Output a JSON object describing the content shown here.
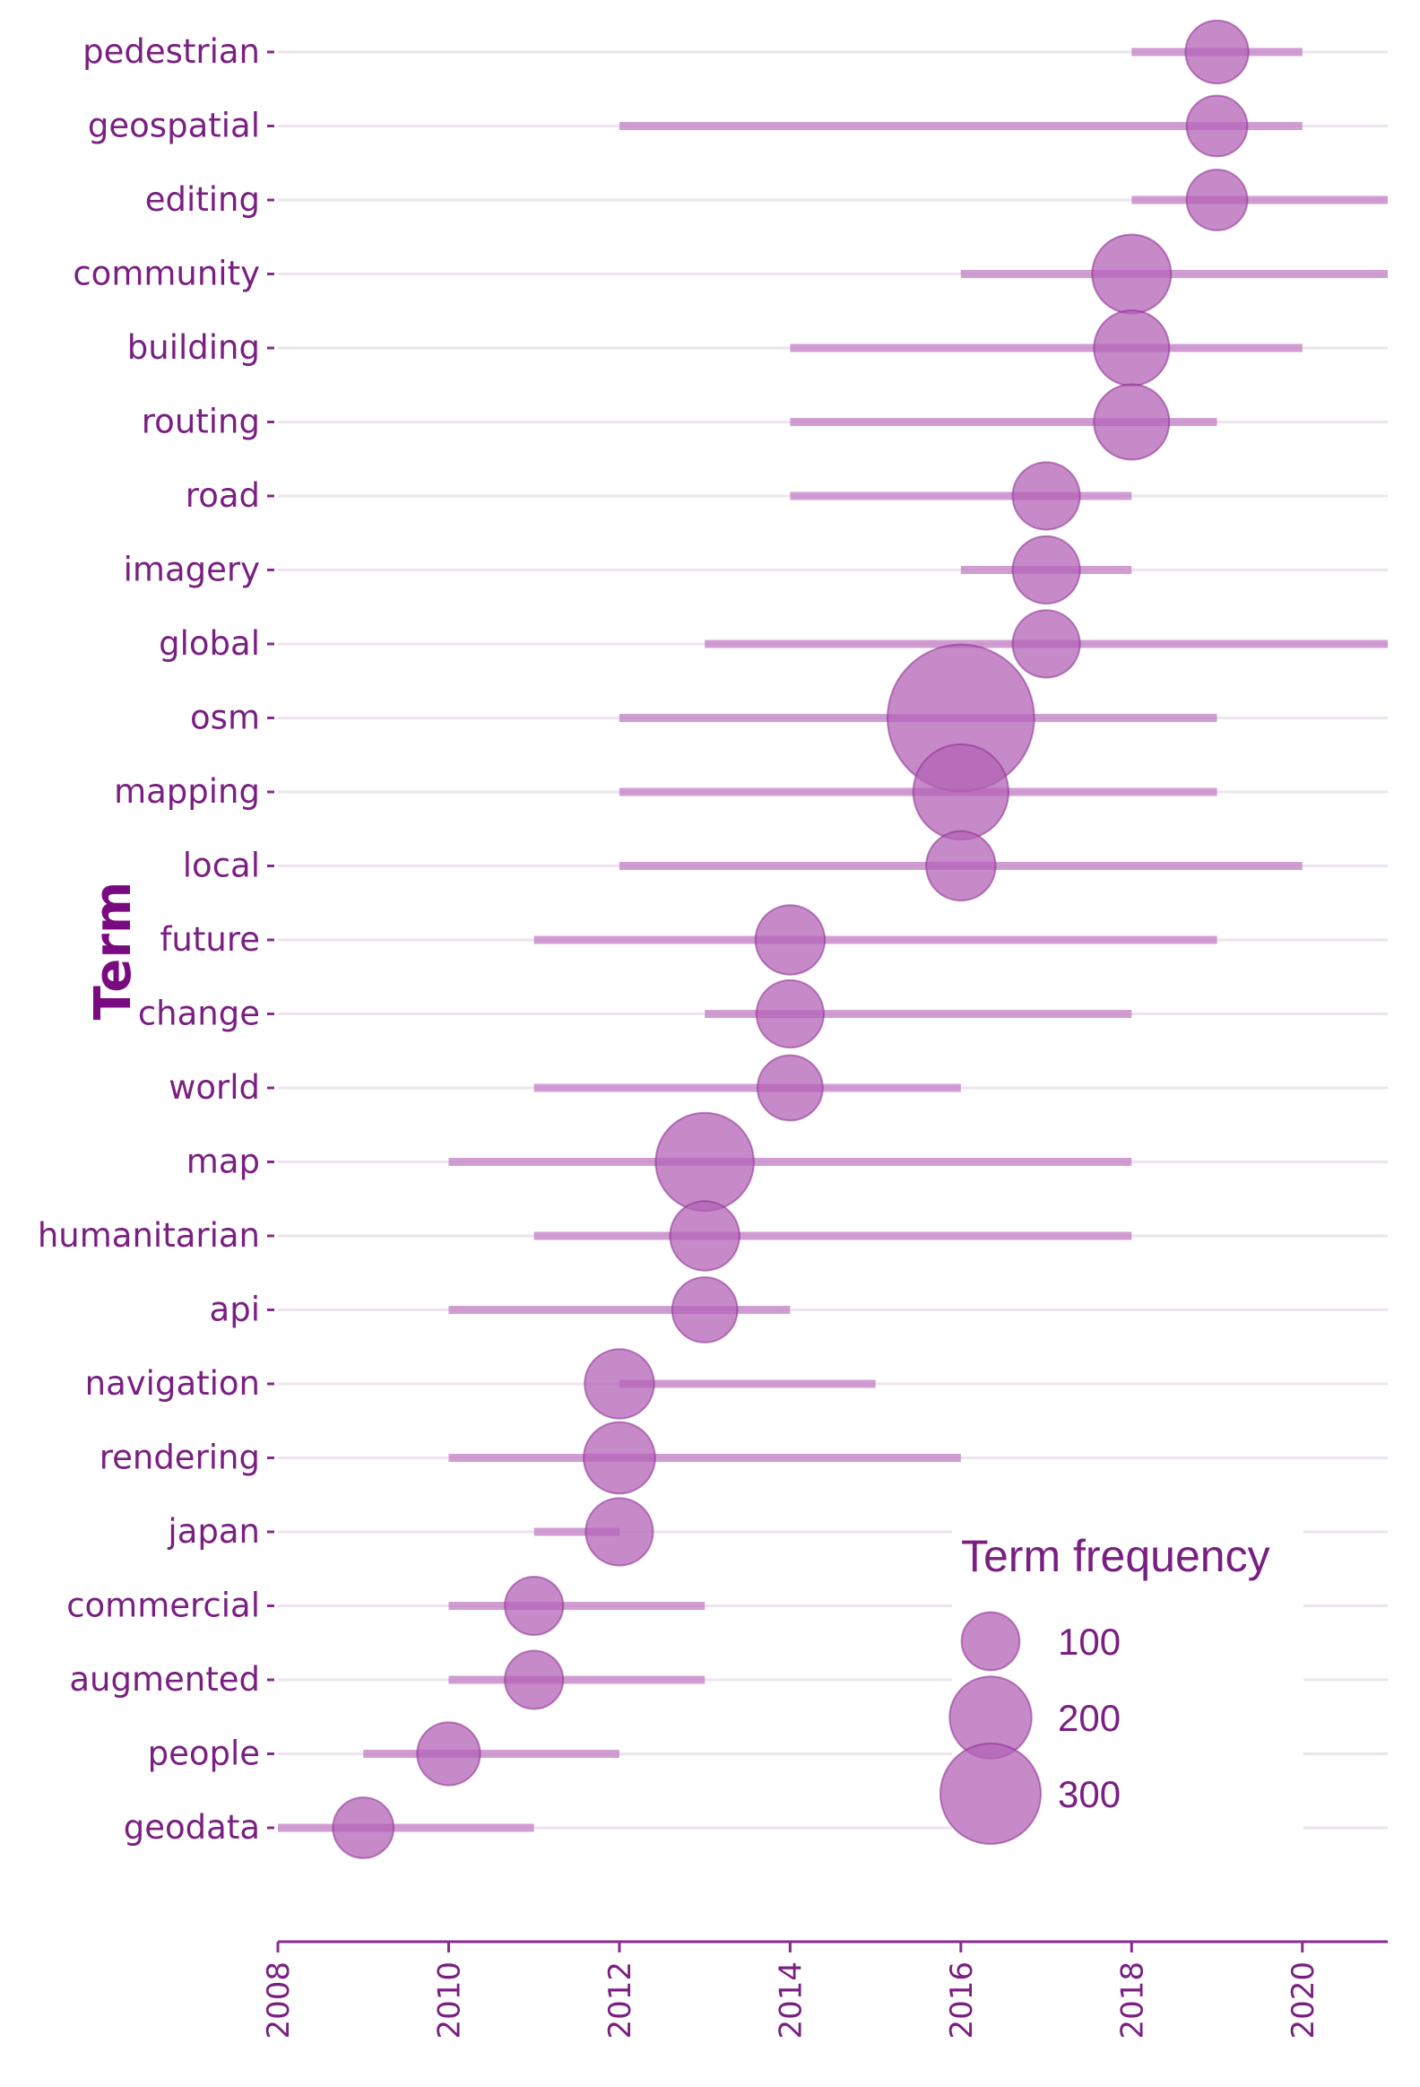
{
  "chart_data": {
    "type": "scatter",
    "ylabel": "Term",
    "xlabel": "",
    "xlim": [
      2008,
      2021
    ],
    "xticks": [
      "2008",
      "2010",
      "2012",
      "2014",
      "2016",
      "2018",
      "2020"
    ],
    "size_legend": {
      "title": "Term frequency",
      "entries": [
        {
          "label": "100",
          "value": 100
        },
        {
          "label": "200",
          "value": 200
        },
        {
          "label": "300",
          "value": 300
        }
      ]
    },
    "colors": {
      "point": "#b363b6",
      "range": "#c98ccb",
      "text": "#7a1f82",
      "axis": "#8a2a8f",
      "grid": "#ece4ee"
    },
    "terms": [
      {
        "term": "pedestrian",
        "start": 2018,
        "end": 2020,
        "peak": 2019,
        "freq": 70
      },
      {
        "term": "geospatial",
        "start": 2012,
        "end": 2020,
        "peak": 2019,
        "freq": 65
      },
      {
        "term": "editing",
        "start": 2018,
        "end": 2021,
        "peak": 2019,
        "freq": 65
      },
      {
        "term": "community",
        "start": 2016,
        "end": 2021,
        "peak": 2018,
        "freq": 110
      },
      {
        "term": "building",
        "start": 2014,
        "end": 2020,
        "peak": 2018,
        "freq": 100
      },
      {
        "term": "routing",
        "start": 2014,
        "end": 2019,
        "peak": 2018,
        "freq": 100
      },
      {
        "term": "road",
        "start": 2014,
        "end": 2018,
        "peak": 2017,
        "freq": 80
      },
      {
        "term": "imagery",
        "start": 2016,
        "end": 2018,
        "peak": 2017,
        "freq": 80
      },
      {
        "term": "global",
        "start": 2013,
        "end": 2021,
        "peak": 2017,
        "freq": 80
      },
      {
        "term": "osm",
        "start": 2012,
        "end": 2019,
        "peak": 2016,
        "freq": 380
      },
      {
        "term": "mapping",
        "start": 2012,
        "end": 2019,
        "peak": 2016,
        "freq": 160
      },
      {
        "term": "local",
        "start": 2012,
        "end": 2020,
        "peak": 2016,
        "freq": 85
      },
      {
        "term": "future",
        "start": 2011,
        "end": 2019,
        "peak": 2014,
        "freq": 85
      },
      {
        "term": "change",
        "start": 2013,
        "end": 2018,
        "peak": 2014,
        "freq": 80
      },
      {
        "term": "world",
        "start": 2011,
        "end": 2016,
        "peak": 2014,
        "freq": 75
      },
      {
        "term": "map",
        "start": 2010,
        "end": 2018,
        "peak": 2013,
        "freq": 170
      },
      {
        "term": "humanitarian",
        "start": 2011,
        "end": 2018,
        "peak": 2013,
        "freq": 85
      },
      {
        "term": "api",
        "start": 2010,
        "end": 2014,
        "peak": 2013,
        "freq": 75
      },
      {
        "term": "navigation",
        "start": 2012,
        "end": 2015,
        "peak": 2012,
        "freq": 85
      },
      {
        "term": "rendering",
        "start": 2010,
        "end": 2016,
        "peak": 2012,
        "freq": 90
      },
      {
        "term": "japan",
        "start": 2011,
        "end": 2012,
        "peak": 2012,
        "freq": 80
      },
      {
        "term": "commercial",
        "start": 2010,
        "end": 2013,
        "peak": 2011,
        "freq": 60
      },
      {
        "term": "augmented",
        "start": 2010,
        "end": 2013,
        "peak": 2011,
        "freq": 60
      },
      {
        "term": "people",
        "start": 2009,
        "end": 2012,
        "peak": 2010,
        "freq": 70
      },
      {
        "term": "geodata",
        "start": 2008,
        "end": 2011,
        "peak": 2009,
        "freq": 65
      }
    ]
  }
}
